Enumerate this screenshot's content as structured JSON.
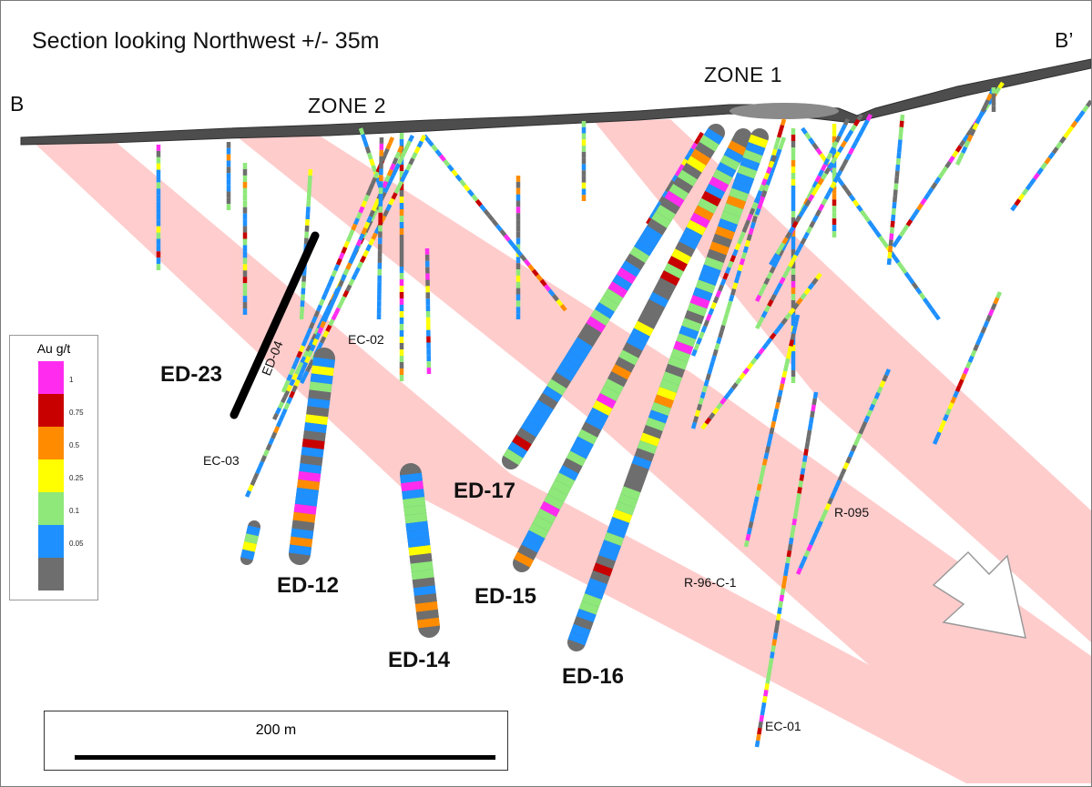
{
  "title": "Section looking Northwest +/- 35m",
  "section_labels": {
    "left": "B",
    "right": "B’"
  },
  "zones": {
    "zone1": "ZONE 1",
    "zone2": "ZONE 2"
  },
  "holes_major": {
    "ed23": "ED-23",
    "ed12": "ED-12",
    "ed14": "ED-14",
    "ed15": "ED-15",
    "ed16": "ED-16",
    "ed17": "ED-17"
  },
  "holes_minor": {
    "ed04": "ED-04",
    "ec02": "EC-02",
    "ec03": "EC-03",
    "ec01": "EC-01",
    "r095": "R-095",
    "r96c1": "R-96-C-1"
  },
  "legend": {
    "title": "Au g/t",
    "bins": [
      {
        "color": "#ff2cf0",
        "label": "1"
      },
      {
        "color": "#c80000",
        "label": "0.75"
      },
      {
        "color": "#ff8c00",
        "label": "0.5"
      },
      {
        "color": "#ffff00",
        "label": "0.25"
      },
      {
        "color": "#8ee87a",
        "label": "0.1"
      },
      {
        "color": "#1e90ff",
        "label": "0.05"
      },
      {
        "color": "#6e6e6e",
        "label": ""
      }
    ]
  },
  "scale_bar": {
    "label": "200 m"
  },
  "colors": {
    "zone_band": "#ffc4c4",
    "topography": "#4a4a4a",
    "background": "#ffffff"
  },
  "icons": {
    "dip_arrow": "arrow-down-right-icon"
  }
}
